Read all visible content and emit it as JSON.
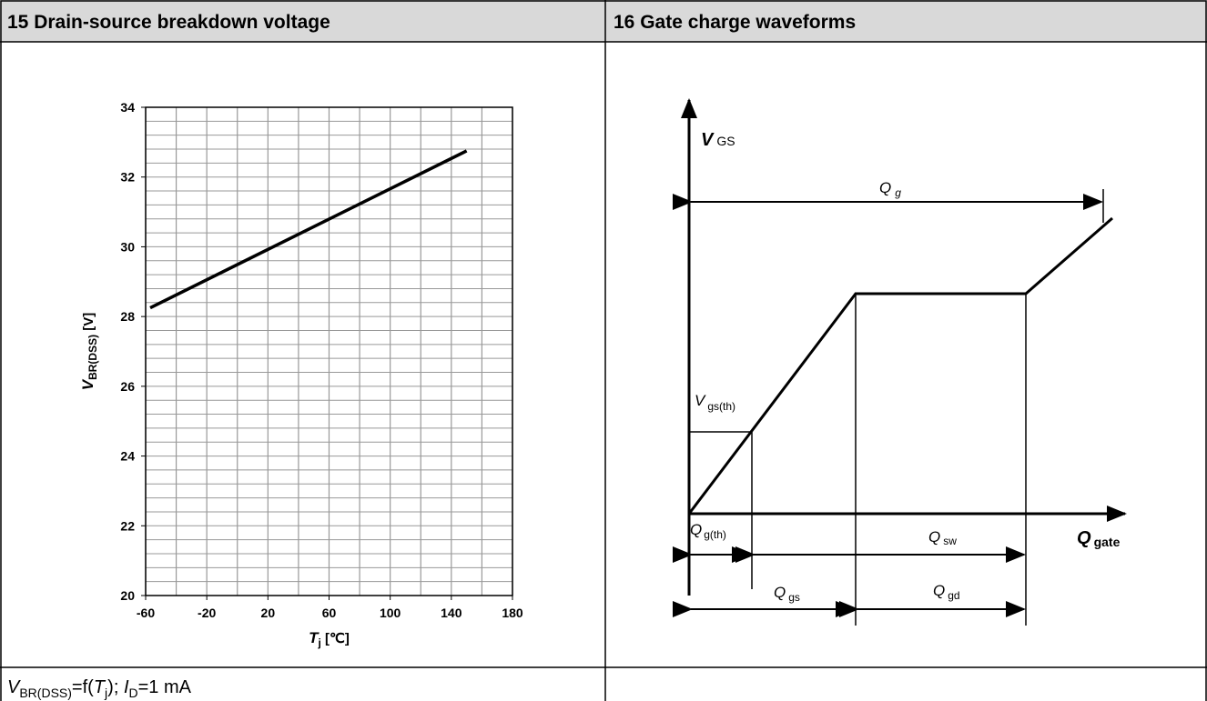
{
  "panels": [
    {
      "title": "15 Drain-source breakdown voltage"
    },
    {
      "title": "16 Gate charge waveforms"
    }
  ],
  "chart_data": {
    "type": "line",
    "ylabel": {
      "main": "V",
      "sub": "BR(DSS)",
      "unit": " [V]"
    },
    "xlabel": {
      "main": "T",
      "sub": "j",
      "unit": " [℃]"
    },
    "x": [
      -57,
      150
    ],
    "series": [
      {
        "color": "#000000",
        "values": [
          28.25,
          32.75
        ]
      }
    ],
    "xlim": [
      -60,
      180
    ],
    "ylim": [
      20,
      34
    ],
    "xticks": [
      -60,
      -20,
      20,
      60,
      100,
      140,
      180
    ],
    "yticks": [
      20,
      22,
      24,
      26,
      28,
      30,
      32,
      34
    ],
    "xgrid": [
      -60,
      -40,
      -20,
      0,
      20,
      40,
      60,
      80,
      100,
      120,
      140,
      160,
      180
    ],
    "ygrid": [
      20,
      20.4,
      20.8,
      21.2,
      21.6,
      22,
      22.4,
      22.8,
      23.2,
      23.6,
      24,
      24.4,
      24.8,
      25.2,
      25.6,
      26,
      26.4,
      26.8,
      27.2,
      27.6,
      28,
      28.4,
      28.8,
      29.2,
      29.6,
      30,
      30.4,
      30.8,
      31.2,
      31.6,
      32,
      32.4,
      32.8,
      33.2,
      33.6,
      34
    ],
    "grid": true
  },
  "diagram": {
    "vgs": {
      "main": "V",
      "sub": "GS"
    },
    "qg": {
      "main": "Q",
      "sub": "g"
    },
    "vgsth": {
      "main": "V",
      "sub": "gs(th)"
    },
    "qgth": {
      "main": "Q",
      "sub": "g(th)"
    },
    "qsw": {
      "main": "Q",
      "sub": "sw"
    },
    "qgate": {
      "main": "Q",
      "sub": "gate"
    },
    "qgs": {
      "main": "Q",
      "sub": "gs"
    },
    "qgd": {
      "main": "Q",
      "sub": "gd"
    }
  },
  "footer": {
    "parts": [
      "V",
      "BR(DSS)",
      "=f(",
      "T",
      "j",
      "); ",
      "I",
      "D",
      "=1 mA"
    ]
  }
}
